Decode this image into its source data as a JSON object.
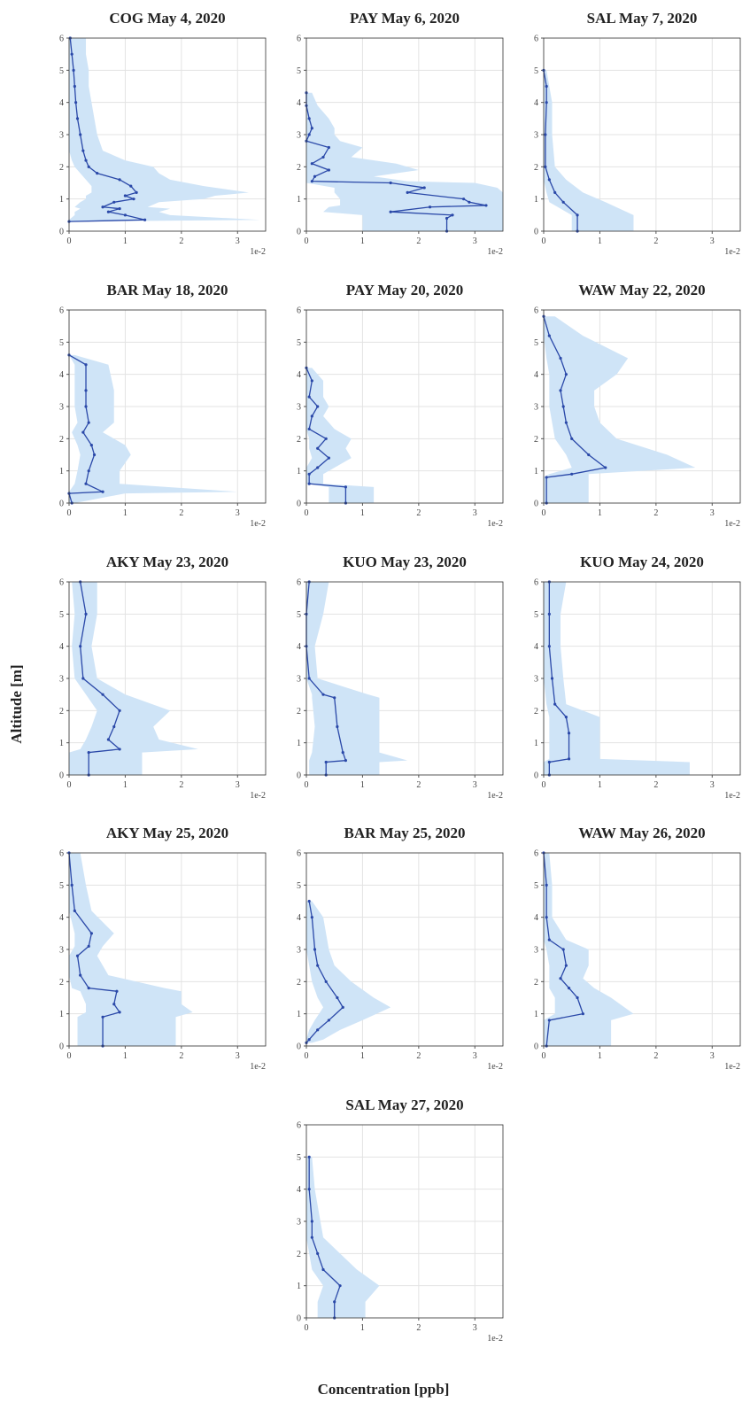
{
  "xlabel": "Concentration [ppb]",
  "ylabel": "Altitude [m]",
  "chart_data": [
    {
      "type": "line",
      "title": "COG May 4, 2020",
      "x_offset_label": "1e-2",
      "xlim": [
        0,
        3.5
      ],
      "ylim": [
        0,
        6
      ],
      "xticks": [
        0,
        1,
        2,
        3
      ],
      "yticks": [
        0,
        1,
        2,
        3,
        4,
        5,
        6
      ],
      "grid": true,
      "color": "#2a48a8",
      "band_color": "#cfe4f7",
      "y": [
        6,
        5.5,
        5,
        4.5,
        4,
        3.5,
        3,
        2.5,
        2.2,
        2,
        1.8,
        1.6,
        1.4,
        1.2,
        1.1,
        1.0,
        0.9,
        0.75,
        0.7,
        0.6,
        0.5,
        0.35,
        0.3
      ],
      "values": [
        0.02,
        0.05,
        0.08,
        0.1,
        0.12,
        0.15,
        0.2,
        0.25,
        0.3,
        0.35,
        0.5,
        0.9,
        1.1,
        1.2,
        1.0,
        1.15,
        0.8,
        0.6,
        0.9,
        0.7,
        1.0,
        1.35,
        0
      ],
      "lower": [
        0,
        0,
        0,
        0,
        0,
        0,
        0,
        0,
        0.05,
        0.1,
        0.2,
        0.3,
        0.4,
        0.4,
        0.3,
        0.3,
        0.2,
        0.1,
        0.2,
        0.1,
        0.1,
        0,
        0
      ],
      "upper": [
        0.3,
        0.3,
        0.35,
        0.35,
        0.4,
        0.45,
        0.5,
        0.6,
        1.0,
        1.5,
        1.6,
        1.8,
        2.4,
        3.2,
        2.6,
        2.4,
        1.6,
        1.4,
        1.8,
        1.6,
        1.8,
        3.4,
        0.1
      ]
    },
    {
      "type": "line",
      "title": "PAY May 6, 2020",
      "x_offset_label": "1e-2",
      "xlim": [
        0,
        3.5
      ],
      "ylim": [
        0,
        6
      ],
      "xticks": [
        0,
        1,
        2,
        3
      ],
      "yticks": [
        0,
        1,
        2,
        3,
        4,
        5,
        6
      ],
      "grid": true,
      "color": "#2a48a8",
      "band_color": "#cfe4f7",
      "y": [
        4.3,
        3.9,
        3.5,
        3.2,
        3,
        2.8,
        2.6,
        2.3,
        2.1,
        1.9,
        1.7,
        1.55,
        1.5,
        1.35,
        1.2,
        1.0,
        0.9,
        0.8,
        0.75,
        0.6,
        0.5,
        0.4,
        0
      ],
      "values": [
        0,
        0,
        0.05,
        0.1,
        0.05,
        0,
        0.4,
        0.3,
        0.1,
        0.4,
        0.15,
        0.1,
        1.5,
        2.1,
        1.8,
        2.8,
        2.9,
        3.2,
        2.2,
        1.5,
        2.6,
        2.5,
        2.5
      ],
      "lower": [
        0,
        0,
        0,
        0,
        0,
        0,
        0,
        0,
        0,
        0,
        0,
        0,
        0,
        0.5,
        0.5,
        0.6,
        0.6,
        0.6,
        0.4,
        0.3,
        1.0,
        1.0,
        1.0
      ],
      "upper": [
        0.1,
        0.2,
        0.4,
        0.5,
        0.5,
        0.6,
        1.0,
        0.8,
        1.6,
        2.0,
        1.2,
        1.8,
        3.0,
        3.4,
        3.5,
        3.5,
        3.5,
        3.5,
        3.5,
        3.5,
        3.5,
        3.5,
        3.5
      ]
    },
    {
      "type": "line",
      "title": "SAL May 7, 2020",
      "x_offset_label": "1e-2",
      "xlim": [
        0,
        3.5
      ],
      "ylim": [
        0,
        6
      ],
      "xticks": [
        0,
        1,
        2,
        3
      ],
      "yticks": [
        0,
        1,
        2,
        3,
        4,
        5,
        6
      ],
      "grid": true,
      "color": "#2a48a8",
      "band_color": "#cfe4f7",
      "y": [
        5,
        4.5,
        4,
        3,
        2,
        1.6,
        1.2,
        0.9,
        0.5,
        0
      ],
      "values": [
        0,
        0.05,
        0.05,
        0.03,
        0.03,
        0.1,
        0.2,
        0.35,
        0.6,
        0.6
      ],
      "lower": [
        0,
        0,
        0,
        0,
        0,
        0,
        0.05,
        0.1,
        0.5,
        0.5
      ],
      "upper": [
        0.05,
        0.1,
        0.15,
        0.15,
        0.2,
        0.4,
        0.7,
        1.1,
        1.6,
        1.6
      ]
    },
    {
      "type": "line",
      "title": "BAR May 18, 2020",
      "x_offset_label": "1e-2",
      "xlim": [
        0,
        3.5
      ],
      "ylim": [
        0,
        6
      ],
      "xticks": [
        0,
        1,
        2,
        3
      ],
      "yticks": [
        0,
        1,
        2,
        3,
        4,
        5,
        6
      ],
      "grid": true,
      "color": "#2a48a8",
      "band_color": "#cfe4f7",
      "y": [
        4.6,
        4.3,
        3.5,
        3,
        2.5,
        2.2,
        1.8,
        1.5,
        1.0,
        0.6,
        0.35,
        0.3,
        0
      ],
      "values": [
        0,
        0.3,
        0.3,
        0.3,
        0.35,
        0.25,
        0.4,
        0.45,
        0.35,
        0.3,
        0.6,
        0,
        0.05
      ],
      "lower": [
        0,
        0.1,
        0.1,
        0.1,
        0.15,
        0.05,
        0.15,
        0.2,
        0.15,
        0.1,
        0,
        0,
        0
      ],
      "upper": [
        0.1,
        0.7,
        0.8,
        0.8,
        0.8,
        0.6,
        1.0,
        1.1,
        0.9,
        0.9,
        3.0,
        1.0,
        0.1
      ]
    },
    {
      "type": "line",
      "title": "PAY May 20, 2020",
      "x_offset_label": "1e-2",
      "xlim": [
        0,
        3.5
      ],
      "ylim": [
        0,
        6
      ],
      "xticks": [
        0,
        1,
        2,
        3
      ],
      "yticks": [
        0,
        1,
        2,
        3,
        4,
        5,
        6
      ],
      "grid": true,
      "color": "#2a48a8",
      "band_color": "#cfe4f7",
      "y": [
        4.2,
        3.8,
        3.3,
        3,
        2.7,
        2.3,
        2.0,
        1.7,
        1.4,
        1.1,
        0.9,
        0.6,
        0.5,
        0
      ],
      "values": [
        0,
        0.1,
        0.05,
        0.2,
        0.1,
        0.05,
        0.35,
        0.2,
        0.4,
        0.2,
        0.05,
        0.05,
        0.7,
        0.7
      ],
      "lower": [
        0,
        0,
        0,
        0,
        0,
        0,
        0.05,
        0.05,
        0.1,
        0,
        0,
        0,
        0.4,
        0.4
      ],
      "upper": [
        0.1,
        0.3,
        0.3,
        0.4,
        0.3,
        0.5,
        0.8,
        0.7,
        0.8,
        0.5,
        0.3,
        0.3,
        1.2,
        1.2
      ]
    },
    {
      "type": "line",
      "title": "WAW May 22, 2020",
      "x_offset_label": "1e-2",
      "xlim": [
        0,
        3.5
      ],
      "ylim": [
        0,
        6
      ],
      "xticks": [
        0,
        1,
        2,
        3
      ],
      "yticks": [
        0,
        1,
        2,
        3,
        4,
        5,
        6
      ],
      "grid": true,
      "color": "#2a48a8",
      "band_color": "#cfe4f7",
      "y": [
        5.8,
        5.2,
        4.5,
        4,
        3.5,
        3,
        2.5,
        2,
        1.5,
        1.1,
        0.9,
        0.8,
        0
      ],
      "values": [
        0,
        0.1,
        0.3,
        0.4,
        0.3,
        0.35,
        0.4,
        0.5,
        0.8,
        1.1,
        0.5,
        0.05,
        0.05
      ],
      "lower": [
        0,
        0,
        0.05,
        0.1,
        0.1,
        0.1,
        0.15,
        0.2,
        0.4,
        0.5,
        0.1,
        0,
        0
      ],
      "upper": [
        0.2,
        0.7,
        1.5,
        1.3,
        0.9,
        0.9,
        1.0,
        1.3,
        2.2,
        2.7,
        0.8,
        0.8,
        0.8
      ]
    },
    {
      "type": "line",
      "title": "AKY May 23, 2020",
      "x_offset_label": "1e-2",
      "xlim": [
        0,
        3.5
      ],
      "ylim": [
        0,
        6
      ],
      "xticks": [
        0,
        1,
        2,
        3
      ],
      "yticks": [
        0,
        1,
        2,
        3,
        4,
        5,
        6
      ],
      "grid": true,
      "color": "#2a48a8",
      "band_color": "#cfe4f7",
      "y": [
        6,
        5,
        4,
        3,
        2.5,
        2,
        1.5,
        1.1,
        0.8,
        0.7,
        0
      ],
      "values": [
        0.2,
        0.3,
        0.2,
        0.25,
        0.6,
        0.9,
        0.8,
        0.7,
        0.9,
        0.35,
        0.35
      ],
      "lower": [
        0.05,
        0.1,
        0.05,
        0.1,
        0.3,
        0.5,
        0.4,
        0.3,
        0.2,
        0,
        0
      ],
      "upper": [
        0.5,
        0.5,
        0.4,
        0.5,
        1.0,
        1.8,
        1.5,
        1.6,
        2.3,
        1.3,
        1.3
      ]
    },
    {
      "type": "line",
      "title": "KUO May 23, 2020",
      "x_offset_label": "1e-2",
      "xlim": [
        0,
        3.5
      ],
      "ylim": [
        0,
        6
      ],
      "xticks": [
        0,
        1,
        2,
        3
      ],
      "yticks": [
        0,
        1,
        2,
        3,
        4,
        5,
        6
      ],
      "grid": true,
      "color": "#2a48a8",
      "band_color": "#cfe4f7",
      "y": [
        6,
        5,
        4,
        3,
        2.5,
        2.4,
        1.5,
        0.7,
        0.45,
        0.4,
        0
      ],
      "values": [
        0.05,
        0,
        0,
        0.05,
        0.3,
        0.5,
        0.55,
        0.65,
        0.7,
        0.35,
        0.35
      ],
      "lower": [
        0,
        0,
        0,
        0,
        0.1,
        0.1,
        0.15,
        0.1,
        0.05,
        0.05,
        0.05
      ],
      "upper": [
        0.4,
        0.3,
        0.15,
        0.2,
        1.1,
        1.3,
        1.3,
        1.3,
        1.8,
        1.3,
        1.3
      ]
    },
    {
      "type": "line",
      "title": "KUO May 24, 2020",
      "x_offset_label": "1e-2",
      "xlim": [
        0,
        3.5
      ],
      "ylim": [
        0,
        6
      ],
      "xticks": [
        0,
        1,
        2,
        3
      ],
      "yticks": [
        0,
        1,
        2,
        3,
        4,
        5,
        6
      ],
      "grid": true,
      "color": "#2a48a8",
      "band_color": "#cfe4f7",
      "y": [
        6,
        5,
        4,
        3,
        2.2,
        1.8,
        1.3,
        0.5,
        0.4,
        0
      ],
      "values": [
        0.1,
        0.1,
        0.1,
        0.15,
        0.2,
        0.4,
        0.45,
        0.45,
        0.1,
        0.1
      ],
      "lower": [
        0,
        0,
        0,
        0,
        0.05,
        0.1,
        0.1,
        0.1,
        0,
        0
      ],
      "upper": [
        0.4,
        0.3,
        0.3,
        0.35,
        0.4,
        1.0,
        1.0,
        1.0,
        2.6,
        2.6
      ]
    },
    {
      "type": "line",
      "title": "AKY May 25, 2020",
      "x_offset_label": "1e-2",
      "xlim": [
        0,
        3.5
      ],
      "ylim": [
        0,
        6
      ],
      "xticks": [
        0,
        1,
        2,
        3
      ],
      "yticks": [
        0,
        1,
        2,
        3,
        4,
        5,
        6
      ],
      "grid": true,
      "color": "#2a48a8",
      "band_color": "#cfe4f7",
      "y": [
        6,
        5,
        4.2,
        3.5,
        3.1,
        2.8,
        2.2,
        1.8,
        1.7,
        1.3,
        1.05,
        0.9,
        0
      ],
      "values": [
        0,
        0.05,
        0.1,
        0.4,
        0.35,
        0.15,
        0.2,
        0.35,
        0.85,
        0.8,
        0.9,
        0.6,
        0.6
      ],
      "lower": [
        0,
        0,
        0,
        0.1,
        0.1,
        0,
        0,
        0.05,
        0.2,
        0.3,
        0.3,
        0.15,
        0.15
      ],
      "upper": [
        0.2,
        0.3,
        0.4,
        0.8,
        0.6,
        0.5,
        0.7,
        1.7,
        2.0,
        2.0,
        2.2,
        1.9,
        1.9
      ]
    },
    {
      "type": "line",
      "title": "BAR May 25, 2020",
      "x_offset_label": "1e-2",
      "xlim": [
        0,
        3.5
      ],
      "ylim": [
        0,
        6
      ],
      "xticks": [
        0,
        1,
        2,
        3
      ],
      "yticks": [
        0,
        1,
        2,
        3,
        4,
        5,
        6
      ],
      "grid": true,
      "color": "#2a48a8",
      "band_color": "#cfe4f7",
      "y": [
        4.5,
        4,
        3,
        2.5,
        2,
        1.5,
        1.2,
        0.8,
        0.5,
        0.2,
        0.1
      ],
      "values": [
        0.05,
        0.1,
        0.15,
        0.2,
        0.35,
        0.55,
        0.65,
        0.4,
        0.2,
        0.05,
        0
      ],
      "lower": [
        0,
        0,
        0,
        0.05,
        0.1,
        0.2,
        0.3,
        0.15,
        0.05,
        0,
        0
      ],
      "upper": [
        0.1,
        0.3,
        0.4,
        0.5,
        0.8,
        1.2,
        1.5,
        1.0,
        0.6,
        0.3,
        0.1
      ]
    },
    {
      "type": "line",
      "title": "WAW May 26, 2020",
      "x_offset_label": "1e-2",
      "xlim": [
        0,
        3.5
      ],
      "ylim": [
        0,
        6
      ],
      "xticks": [
        0,
        1,
        2,
        3
      ],
      "yticks": [
        0,
        1,
        2,
        3,
        4,
        5,
        6
      ],
      "grid": true,
      "color": "#2a48a8",
      "band_color": "#cfe4f7",
      "y": [
        6,
        5,
        4,
        3.3,
        3.0,
        2.5,
        2.1,
        1.8,
        1.5,
        1.0,
        0.8,
        0
      ],
      "values": [
        0,
        0.05,
        0.05,
        0.1,
        0.35,
        0.4,
        0.3,
        0.45,
        0.6,
        0.7,
        0.1,
        0.05
      ],
      "lower": [
        0,
        0,
        0,
        0,
        0.05,
        0.1,
        0.1,
        0.1,
        0.2,
        0.2,
        0,
        0
      ],
      "upper": [
        0.1,
        0.15,
        0.15,
        0.4,
        0.8,
        0.8,
        0.7,
        0.9,
        1.2,
        1.6,
        1.2,
        1.2
      ]
    },
    {
      "type": "line",
      "title": "SAL May 27, 2020",
      "x_offset_label": "1e-2",
      "xlim": [
        0,
        3.5
      ],
      "ylim": [
        0,
        6
      ],
      "xticks": [
        0,
        1,
        2,
        3
      ],
      "yticks": [
        0,
        1,
        2,
        3,
        4,
        5,
        6
      ],
      "grid": true,
      "color": "#2a48a8",
      "band_color": "#cfe4f7",
      "y": [
        5,
        4,
        3,
        2.5,
        2,
        1.5,
        1.0,
        0.5,
        0
      ],
      "values": [
        0.05,
        0.05,
        0.1,
        0.1,
        0.2,
        0.3,
        0.6,
        0.5,
        0.5
      ],
      "lower": [
        0,
        0,
        0,
        0,
        0.05,
        0.1,
        0.3,
        0.2,
        0.2
      ],
      "upper": [
        0.1,
        0.15,
        0.25,
        0.3,
        0.6,
        0.9,
        1.3,
        1.05,
        1.05
      ]
    }
  ]
}
